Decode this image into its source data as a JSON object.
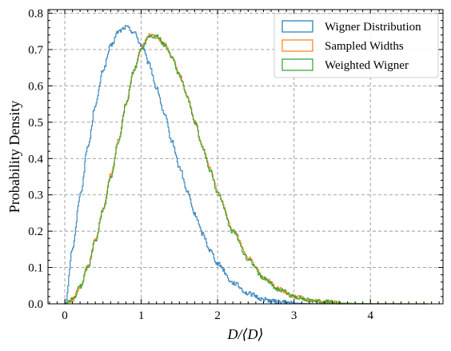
{
  "chart_data": {
    "type": "line",
    "title": "",
    "xlabel": "D/⟨D⟩",
    "ylabel": "Probability Density",
    "xlim": [
      -0.22,
      4.95
    ],
    "ylim": [
      0,
      0.81
    ],
    "xticks": [
      "0",
      "1",
      "2",
      "3",
      "4"
    ],
    "yticks": [
      "0.0",
      "0.1",
      "0.2",
      "0.3",
      "0.4",
      "0.5",
      "0.6",
      "0.7",
      "0.8"
    ],
    "grid": true,
    "legend": "top-right",
    "series": [
      {
        "name": "Wigner Distribution",
        "color": "#1f77b4",
        "x": [
          0,
          0.1,
          0.2,
          0.3,
          0.4,
          0.5,
          0.6,
          0.7,
          0.8,
          0.9,
          1.0,
          1.1,
          1.2,
          1.3,
          1.4,
          1.5,
          1.6,
          1.7,
          1.8,
          1.9,
          2.0,
          2.2,
          2.4,
          2.6,
          2.8,
          3.0,
          3.2,
          3.4,
          3.6,
          3.8,
          4.0,
          4.2,
          4.4
        ],
        "y": [
          0,
          0.155,
          0.302,
          0.434,
          0.55,
          0.645,
          0.71,
          0.75,
          0.762,
          0.748,
          0.712,
          0.66,
          0.592,
          0.52,
          0.446,
          0.374,
          0.308,
          0.246,
          0.193,
          0.147,
          0.11,
          0.058,
          0.028,
          0.012,
          0.005,
          0.002,
          0.0006,
          0.0002,
          0.0001,
          0,
          0,
          0,
          0
        ]
      },
      {
        "name": "Sampled Widths",
        "color": "#ff7f0e",
        "x": [
          0,
          0.1,
          0.2,
          0.3,
          0.4,
          0.5,
          0.6,
          0.7,
          0.8,
          0.9,
          1.0,
          1.1,
          1.2,
          1.3,
          1.4,
          1.5,
          1.6,
          1.7,
          1.8,
          1.9,
          2.0,
          2.2,
          2.4,
          2.6,
          2.8,
          3.0,
          3.2,
          3.4,
          3.6,
          3.8,
          4.0,
          4.2,
          4.4,
          4.6,
          4.75
        ],
        "y": [
          0,
          0.012,
          0.048,
          0.104,
          0.178,
          0.262,
          0.355,
          0.45,
          0.555,
          0.645,
          0.705,
          0.74,
          0.735,
          0.715,
          0.68,
          0.63,
          0.57,
          0.5,
          0.43,
          0.37,
          0.305,
          0.2,
          0.125,
          0.072,
          0.04,
          0.02,
          0.01,
          0.005,
          0.002,
          0.001,
          0.0005,
          0.0002,
          0.0001,
          0,
          0
        ]
      },
      {
        "name": "Weighted Wigner",
        "color": "#2ca02c",
        "x": [
          0,
          0.1,
          0.2,
          0.3,
          0.4,
          0.5,
          0.6,
          0.7,
          0.8,
          0.9,
          1.0,
          1.1,
          1.2,
          1.3,
          1.4,
          1.5,
          1.6,
          1.7,
          1.8,
          1.9,
          2.0,
          2.2,
          2.4,
          2.6,
          2.8,
          3.0,
          3.2,
          3.4,
          3.6,
          3.8,
          4.0,
          4.2,
          4.4,
          4.6,
          4.75
        ],
        "y": [
          0,
          0.012,
          0.048,
          0.104,
          0.176,
          0.26,
          0.352,
          0.448,
          0.553,
          0.642,
          0.702,
          0.738,
          0.736,
          0.712,
          0.678,
          0.628,
          0.566,
          0.498,
          0.428,
          0.366,
          0.302,
          0.198,
          0.122,
          0.07,
          0.039,
          0.02,
          0.01,
          0.005,
          0.002,
          0.001,
          0.0005,
          0.0002,
          0.0001,
          0,
          0
        ]
      }
    ]
  }
}
